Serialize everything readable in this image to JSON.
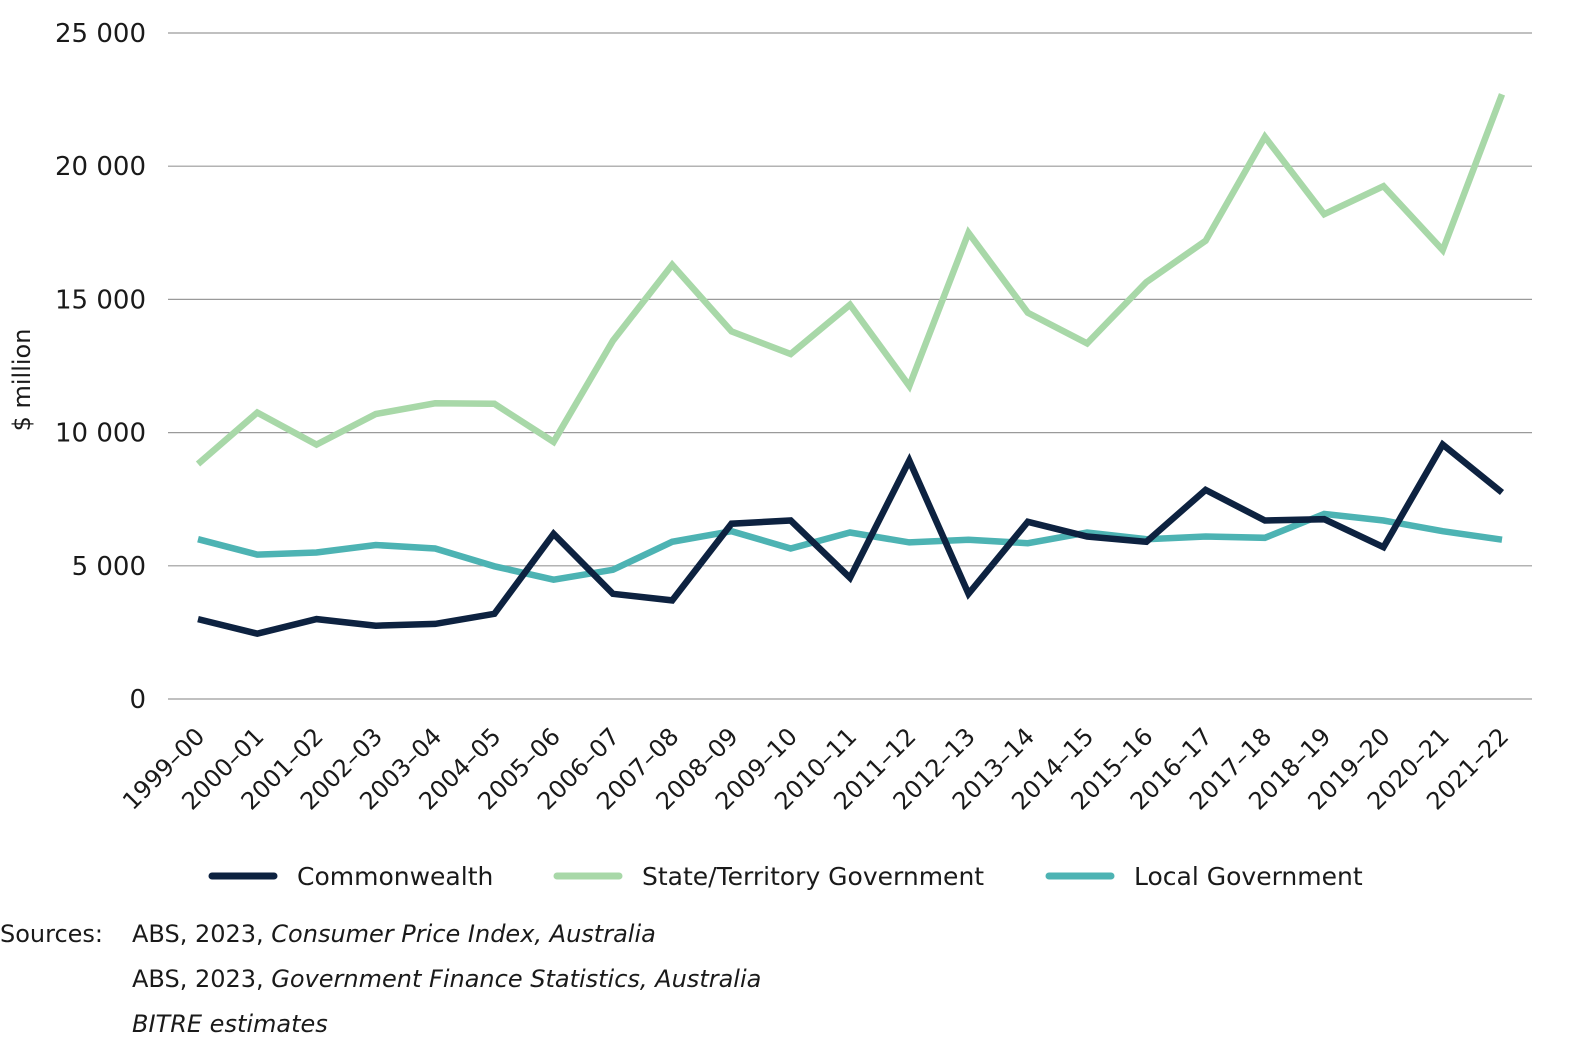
{
  "chart_data": {
    "type": "line",
    "title": "",
    "xlabel": "",
    "ylabel": "$ million",
    "ylim": [
      0,
      25000
    ],
    "yticks": [
      0,
      5000,
      10000,
      15000,
      20000,
      25000
    ],
    "ytick_labels": [
      "0",
      "5 000",
      "10 000",
      "15 000",
      "20 000",
      "25 000"
    ],
    "grid": true,
    "legend_position": "bottom",
    "categories": [
      "1999–00",
      "2000–01",
      "2001–02",
      "2002–03",
      "2003–04",
      "2004–05",
      "2005–06",
      "2006–07",
      "2007–08",
      "2008–09",
      "2009–10",
      "2010–11",
      "2011–12",
      "2012–13",
      "2013–14",
      "2014–15",
      "2015–16",
      "2016–17",
      "2017–18",
      "2018–19",
      "2019–20",
      "2020–21",
      "2021–22"
    ],
    "series": [
      {
        "name": "Commonwealth",
        "color": "#0d2240",
        "values": [
          3000,
          2450,
          3000,
          2750,
          2820,
          3200,
          6200,
          3950,
          3700,
          6580,
          6700,
          4550,
          8950,
          3950,
          6650,
          6100,
          5900,
          7850,
          6700,
          6750,
          5700,
          9550,
          7750
        ]
      },
      {
        "name": "State/Territory Government",
        "color": "#a8d8a8",
        "values": [
          8820,
          10750,
          9550,
          10700,
          11100,
          11080,
          9650,
          13450,
          16300,
          13800,
          12950,
          14800,
          11750,
          17500,
          14500,
          13350,
          15650,
          17200,
          21100,
          18200,
          19250,
          16850,
          22700
        ]
      },
      {
        "name": "Local Government",
        "color": "#4db3b3",
        "values": [
          6000,
          5420,
          5500,
          5780,
          5650,
          4980,
          4480,
          4850,
          5900,
          6300,
          5650,
          6250,
          5880,
          5980,
          5850,
          6250,
          6000,
          6100,
          6050,
          6950,
          6700,
          6300,
          5980
        ]
      }
    ]
  },
  "sources": {
    "label": "Sources:",
    "lines": [
      {
        "prefix": "ABS, 2023, ",
        "title": "Consumer Price Index, Australia"
      },
      {
        "prefix": "ABS, 2023, ",
        "title": "Government Finance Statistics, Australia"
      },
      {
        "prefix": "",
        "title": "BITRE estimates"
      }
    ]
  }
}
